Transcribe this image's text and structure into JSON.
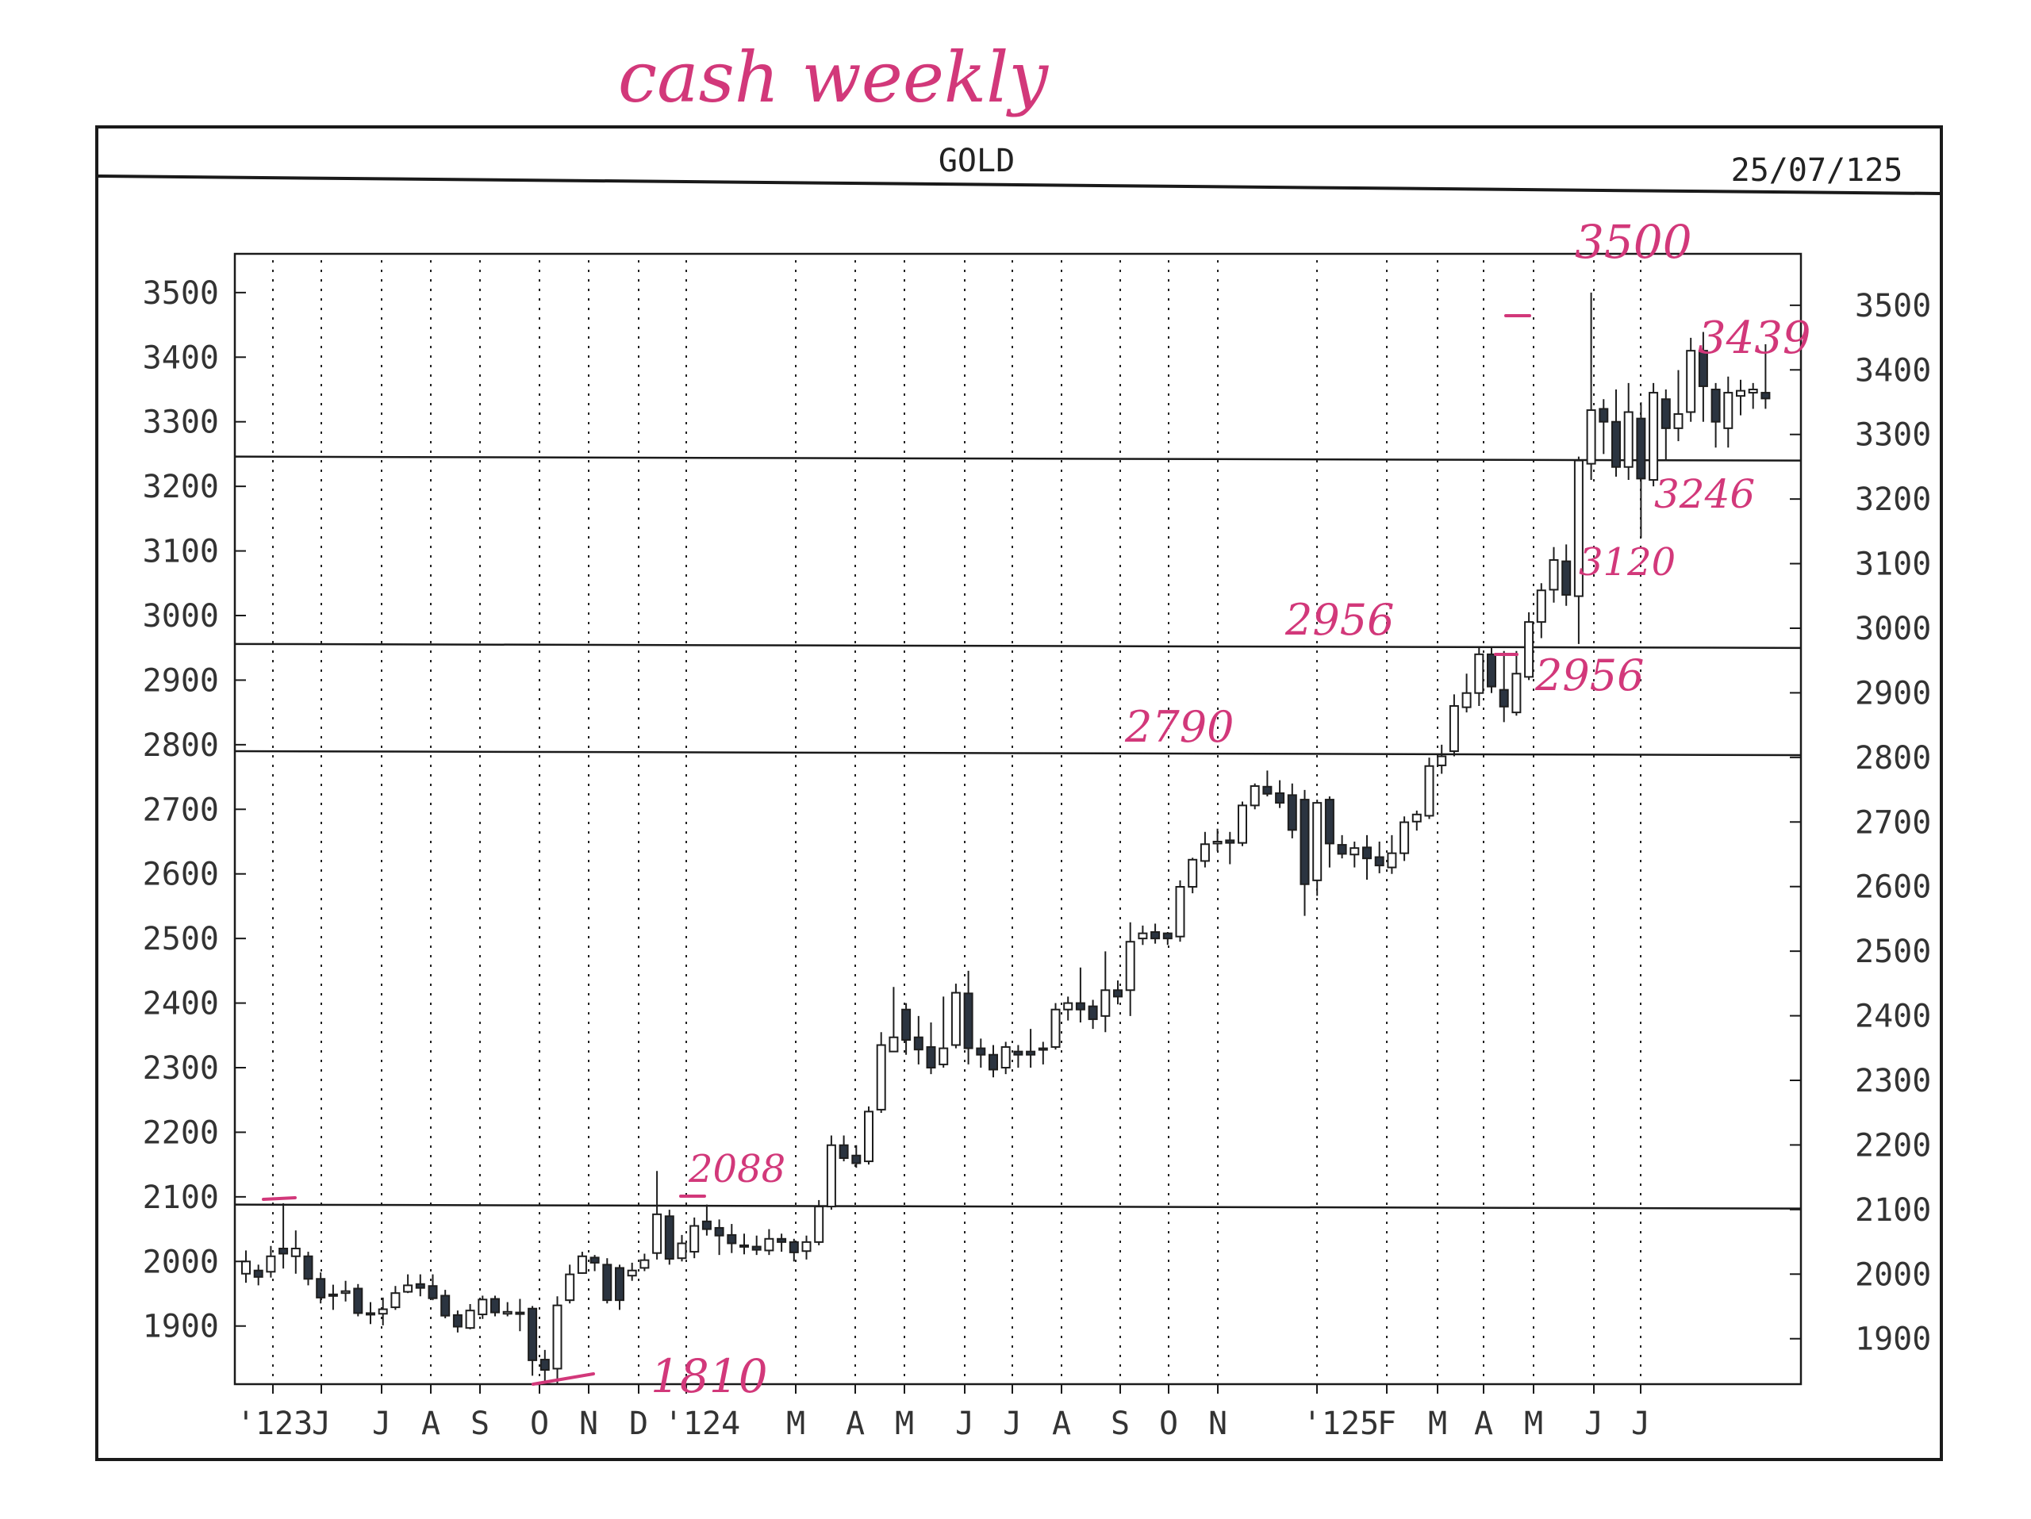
{
  "page": {
    "handwritten_title": "cash weekly",
    "header_title": "GOLD",
    "header_date": "25/07/125"
  },
  "chart_data": {
    "type": "candlestick",
    "title": "GOLD",
    "date": "25/07/125",
    "ylim": [
      1810,
      3560
    ],
    "yticks": [
      1900,
      2000,
      2100,
      2200,
      2300,
      2400,
      2500,
      2600,
      2700,
      2800,
      2900,
      3000,
      3100,
      3200,
      3300,
      3400,
      3500
    ],
    "xticks": [
      "'123",
      "J",
      "J",
      "A",
      "S",
      "O",
      "N",
      "D",
      "'124",
      "M",
      "A",
      "M",
      "J",
      "J",
      "A",
      "S",
      "O",
      "N",
      "'125",
      "F",
      "M",
      "A",
      "M",
      "J",
      "J"
    ],
    "grid": "vertical dotted",
    "horizontal_levels": [
      2088,
      2790,
      2956,
      3246
    ],
    "annotations": [
      "3500",
      "3439",
      "3246",
      "3120",
      "2956",
      "2956",
      "2790",
      "2088",
      "1810"
    ],
    "series": [
      {
        "candles": [
          [
            1981,
            2000,
            2017,
            1967
          ],
          [
            1986,
            1976,
            1995,
            1963
          ],
          [
            1984,
            2008,
            2024,
            1975
          ],
          [
            2020,
            2012,
            2090,
            1989
          ],
          [
            2008,
            2020,
            2048,
            1981
          ],
          [
            2008,
            1973,
            2015,
            1963
          ],
          [
            1973,
            1944,
            1983,
            1935
          ],
          [
            1947,
            1949,
            1964,
            1925
          ],
          [
            1951,
            1954,
            1970,
            1938
          ],
          [
            1958,
            1920,
            1965,
            1915
          ],
          [
            1920,
            1918,
            1937,
            1903
          ],
          [
            1919,
            1926,
            1944,
            1901
          ],
          [
            1929,
            1951,
            1962,
            1925
          ],
          [
            1953,
            1963,
            1980,
            1951
          ],
          [
            1965,
            1959,
            1980,
            1946
          ],
          [
            1962,
            1943,
            1980,
            1940
          ],
          [
            1947,
            1916,
            1956,
            1912
          ],
          [
            1917,
            1899,
            1924,
            1890
          ],
          [
            1897,
            1924,
            1934,
            1895
          ],
          [
            1918,
            1941,
            1947,
            1911
          ],
          [
            1942,
            1921,
            1947,
            1915
          ],
          [
            1919,
            1922,
            1937,
            1915
          ],
          [
            1921,
            1920,
            1942,
            1892
          ],
          [
            1927,
            1847,
            1931,
            1823
          ],
          [
            1848,
            1832,
            1863,
            1810
          ],
          [
            1834,
            1932,
            1946,
            1810
          ],
          [
            1940,
            1980,
            1995,
            1935
          ],
          [
            1982,
            2008,
            2015,
            1981
          ],
          [
            2006,
            1998,
            2010,
            1985
          ],
          [
            1995,
            1940,
            2005,
            1935
          ],
          [
            1990,
            1940,
            1995,
            1925
          ],
          [
            1978,
            1986,
            1998,
            1970
          ],
          [
            1990,
            2002,
            2012,
            1985
          ],
          [
            2013,
            2073,
            2140,
            2003
          ],
          [
            2070,
            2004,
            2080,
            1995
          ],
          [
            2005,
            2028,
            2041,
            2000
          ],
          [
            2015,
            2055,
            2068,
            2005
          ],
          [
            2062,
            2050,
            2088,
            2040
          ],
          [
            2052,
            2040,
            2065,
            2010
          ],
          [
            2041,
            2028,
            2058,
            2013
          ],
          [
            2025,
            2023,
            2043,
            2011
          ],
          [
            2023,
            2018,
            2040,
            2010
          ],
          [
            2017,
            2035,
            2050,
            2010
          ],
          [
            2035,
            2030,
            2043,
            2015
          ],
          [
            2030,
            2014,
            2035,
            2000
          ],
          [
            2016,
            2030,
            2040,
            2003
          ],
          [
            2030,
            2085,
            2095,
            2025
          ],
          [
            2085,
            2180,
            2195,
            2080
          ],
          [
            2180,
            2160,
            2195,
            2155
          ],
          [
            2164,
            2152,
            2180,
            2145
          ],
          [
            2155,
            2232,
            2240,
            2150
          ],
          [
            2235,
            2335,
            2355,
            2230
          ],
          [
            2325,
            2347,
            2425,
            2325
          ],
          [
            2390,
            2343,
            2400,
            2320
          ],
          [
            2347,
            2328,
            2380,
            2305
          ],
          [
            2332,
            2300,
            2370,
            2290
          ],
          [
            2305,
            2330,
            2410,
            2300
          ],
          [
            2335,
            2416,
            2430,
            2330
          ],
          [
            2415,
            2330,
            2450,
            2305
          ],
          [
            2330,
            2320,
            2345,
            2300
          ],
          [
            2320,
            2297,
            2335,
            2285
          ],
          [
            2300,
            2332,
            2340,
            2290
          ],
          [
            2325,
            2320,
            2335,
            2300
          ],
          [
            2325,
            2320,
            2360,
            2300
          ],
          [
            2330,
            2330,
            2340,
            2305
          ],
          [
            2332,
            2390,
            2400,
            2328
          ],
          [
            2390,
            2400,
            2410,
            2373
          ],
          [
            2400,
            2390,
            2455,
            2370
          ],
          [
            2395,
            2375,
            2405,
            2360
          ],
          [
            2380,
            2420,
            2480,
            2355
          ],
          [
            2420,
            2410,
            2435,
            2398
          ],
          [
            2420,
            2495,
            2525,
            2380
          ],
          [
            2500,
            2508,
            2520,
            2490
          ],
          [
            2510,
            2500,
            2523,
            2492
          ],
          [
            2508,
            2500,
            2510,
            2490
          ],
          [
            2503,
            2580,
            2590,
            2495
          ],
          [
            2580,
            2622,
            2625,
            2570
          ],
          [
            2620,
            2646,
            2665,
            2610
          ],
          [
            2647,
            2650,
            2670,
            2635
          ],
          [
            2652,
            2648,
            2665,
            2615
          ],
          [
            2648,
            2706,
            2712,
            2643
          ],
          [
            2706,
            2736,
            2740,
            2700
          ],
          [
            2735,
            2724,
            2760,
            2720
          ],
          [
            2725,
            2710,
            2745,
            2702
          ],
          [
            2722,
            2668,
            2740,
            2655
          ],
          [
            2715,
            2584,
            2730,
            2535
          ],
          [
            2590,
            2710,
            2715,
            2566
          ],
          [
            2715,
            2647,
            2720,
            2610
          ],
          [
            2645,
            2631,
            2660,
            2624
          ],
          [
            2630,
            2640,
            2650,
            2610
          ],
          [
            2641,
            2624,
            2660,
            2591
          ],
          [
            2626,
            2613,
            2650,
            2601
          ],
          [
            2610,
            2632,
            2660,
            2600
          ],
          [
            2632,
            2680,
            2689,
            2620
          ],
          [
            2681,
            2692,
            2698,
            2667
          ],
          [
            2690,
            2767,
            2780,
            2685
          ],
          [
            2768,
            2782,
            2800,
            2755
          ],
          [
            2790,
            2860,
            2878,
            2782
          ],
          [
            2858,
            2880,
            2910,
            2850
          ],
          [
            2880,
            2940,
            2950,
            2860
          ],
          [
            2940,
            2890,
            2950,
            2880
          ],
          [
            2885,
            2859,
            2945,
            2835
          ],
          [
            2850,
            2910,
            2945,
            2845
          ],
          [
            2905,
            2990,
            3005,
            2900
          ],
          [
            2990,
            3039,
            3050,
            2965
          ],
          [
            3040,
            3086,
            3106,
            3020
          ],
          [
            3084,
            3032,
            3110,
            3015
          ],
          [
            3030,
            3240,
            3246,
            2956
          ],
          [
            3235,
            3318,
            3500,
            3210
          ],
          [
            3320,
            3300,
            3335,
            3250
          ],
          [
            3300,
            3230,
            3350,
            3215
          ],
          [
            3230,
            3315,
            3360,
            3210
          ],
          [
            3305,
            3212,
            3330,
            3120
          ],
          [
            3210,
            3345,
            3360,
            3200
          ],
          [
            3335,
            3290,
            3350,
            3240
          ],
          [
            3290,
            3312,
            3380,
            3270
          ],
          [
            3315,
            3410,
            3430,
            3300
          ],
          [
            3410,
            3355,
            3439,
            3300
          ],
          [
            3350,
            3300,
            3360,
            3260
          ],
          [
            3290,
            3345,
            3370,
            3260
          ],
          [
            3340,
            3348,
            3365,
            3310
          ],
          [
            3345,
            3350,
            3360,
            3320
          ],
          [
            3345,
            3336,
            3420,
            3320
          ]
        ]
      }
    ]
  }
}
